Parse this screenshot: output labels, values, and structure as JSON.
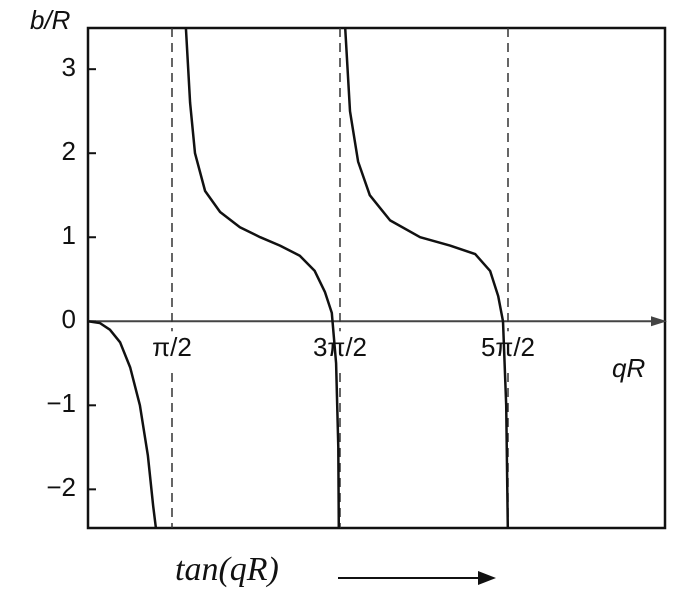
{
  "chart_data": {
    "type": "line",
    "y_label": "b/R",
    "x_label": "qR",
    "caption": "tan(qR)",
    "color": "#111111",
    "x": [
      0,
      0.22,
      0.41,
      0.6,
      0.79,
      0.97,
      1.12,
      1.22,
      1.27,
      null,
      1.83,
      1.91,
      2.0,
      2.19,
      2.47,
      2.84,
      3.22,
      3.59,
      3.96,
      4.24,
      4.43,
      4.56,
      4.64,
      4.68,
      4.69,
      null,
      4.81,
      4.9,
      5.05,
      5.27,
      5.65,
      6.21,
      6.77,
      7.24,
      7.52,
      7.67,
      7.76,
      7.82,
      7.85
    ],
    "values": [
      0,
      -0.02,
      -0.1,
      -0.25,
      -0.55,
      -1.0,
      -1.6,
      -2.2,
      -2.46,
      null,
      3.49,
      2.6,
      2.0,
      1.55,
      1.3,
      1.12,
      1.0,
      0.9,
      0.78,
      0.6,
      0.35,
      0.1,
      -0.5,
      -1.5,
      -2.46,
      null,
      3.49,
      2.5,
      1.9,
      1.5,
      1.2,
      1.0,
      0.9,
      0.8,
      0.6,
      0.3,
      0,
      -1.0,
      -2.46
    ],
    "xlim": [
      0,
      10.79
    ],
    "ylim": [
      -2.46,
      3.49
    ],
    "xticks": [
      {
        "value": 1.5708,
        "label": "π/2"
      },
      {
        "value": 4.7124,
        "label": "3π/2"
      },
      {
        "value": 7.854,
        "label": "5π/2"
      }
    ],
    "yticks": [
      3,
      2,
      1,
      0,
      {
        "value": -1,
        "label": "−1"
      },
      {
        "value": -2,
        "label": "−2"
      }
    ],
    "asymptote_lines": true
  }
}
